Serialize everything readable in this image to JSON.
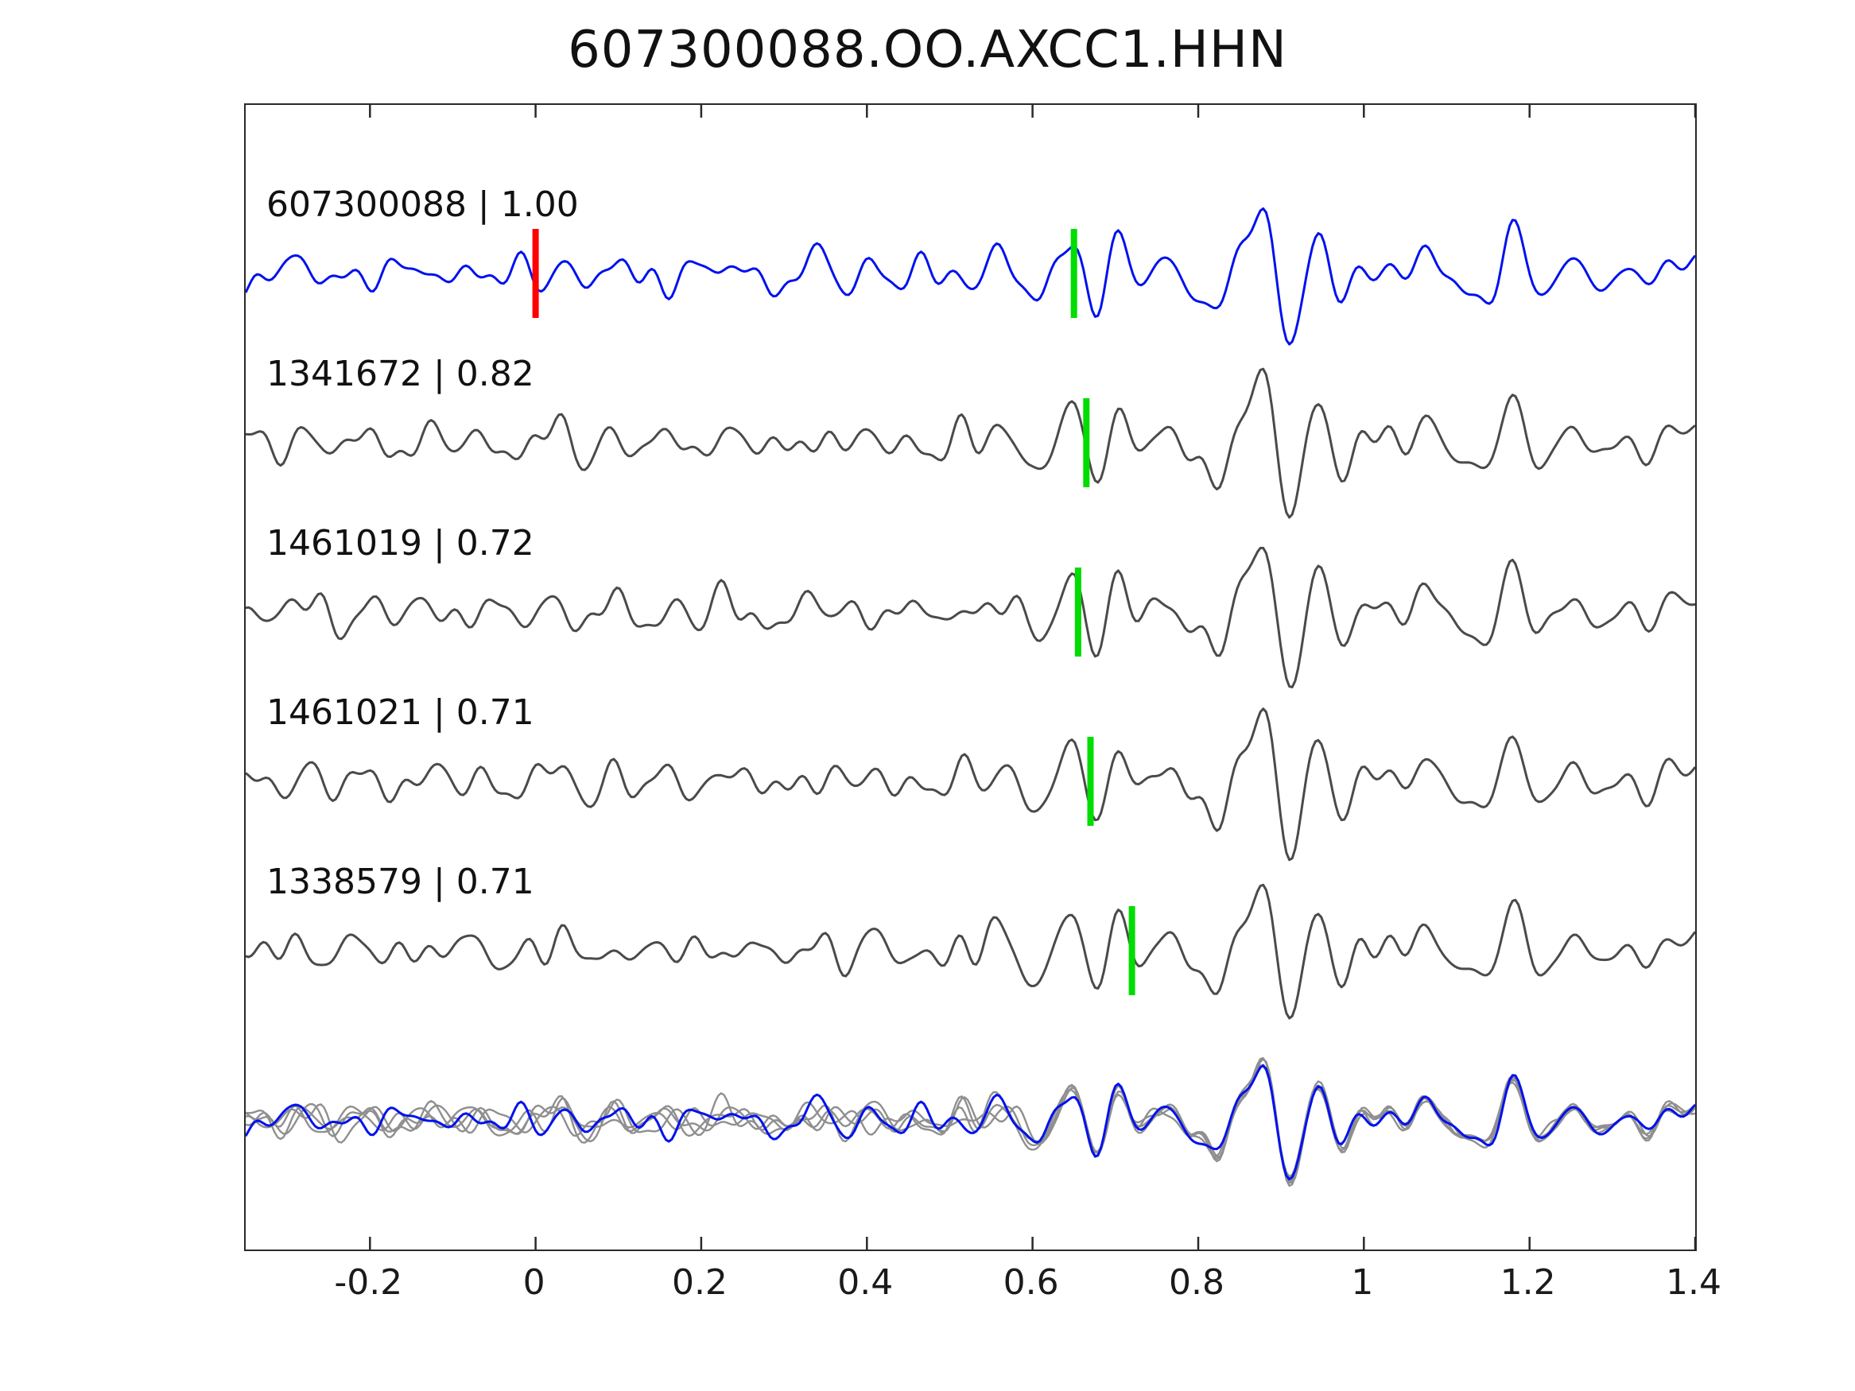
{
  "title": "607300088.OO.AXCC1.HHN",
  "chart_data": {
    "type": "line",
    "subtype": "seismogram-template-matching-comparison",
    "title": "607300088.OO.AXCC1.HHN",
    "xlabel": "",
    "ylabel": "",
    "xlim": [
      -0.35,
      1.4
    ],
    "x_ticks": [
      -0.2,
      0,
      0.2,
      0.4,
      0.6,
      0.8,
      1,
      1.2,
      1.4
    ],
    "x_tick_labels": [
      "-0.2",
      "0",
      "0.2",
      "0.4",
      "0.6",
      "0.8",
      "1",
      "1.2",
      "1.4"
    ],
    "grid": false,
    "legend_position": "none",
    "colors": {
      "template_trace": "#0011ee",
      "detection_trace": "#4a4a4a",
      "overlay_trace": "#8f8f8f",
      "pick_marker": "#00dd00",
      "template_marker": "#ff0000",
      "axis": "#2a2a2a",
      "text": "#111111"
    },
    "red_marker_x": 0,
    "traces": [
      {
        "id": "607300088",
        "cc": "1.00",
        "display": "607300088 | 1.00",
        "role": "template",
        "pick_x": 0.65,
        "seed": 11
      },
      {
        "id": "1341672",
        "cc": "0.82",
        "display": "1341672 | 0.82",
        "role": "detection",
        "pick_x": 0.665,
        "seed": 23
      },
      {
        "id": "1461019",
        "cc": "0.72",
        "display": "1461019 | 0.72",
        "role": "detection",
        "pick_x": 0.655,
        "seed": 37
      },
      {
        "id": "1461021",
        "cc": "0.71",
        "display": "1461021 | 0.71",
        "role": "detection",
        "pick_x": 0.67,
        "seed": 51
      },
      {
        "id": "1338579",
        "cc": "0.71",
        "display": "1338579 | 0.71",
        "role": "detection",
        "pick_x": 0.72,
        "seed": 67
      }
    ],
    "overlay_row": {
      "description": "bottom row: all detection waveforms overlaid in gray with the template waveform in blue",
      "has_template": true
    },
    "waveform_model": {
      "base_seed": 7,
      "base_freqs": [
        6,
        9.5,
        13,
        16.5,
        21,
        27
      ],
      "base_amps": [
        0.6,
        0.9,
        1.0,
        0.75,
        0.45,
        0.25
      ],
      "noise_freqs": [
        8,
        14,
        19,
        25,
        31
      ],
      "noise_amps": [
        0.5,
        0.7,
        0.6,
        0.4,
        0.3
      ],
      "envelope": [
        [
          -0.35,
          0.1
        ],
        [
          0,
          0.12
        ],
        [
          0.05,
          0.13
        ],
        [
          0.08,
          0.3
        ],
        [
          0.17,
          0.32
        ],
        [
          0.22,
          0.16
        ],
        [
          0.35,
          0.18
        ],
        [
          0.45,
          0.22
        ],
        [
          0.55,
          0.25
        ],
        [
          0.6,
          0.35
        ],
        [
          0.65,
          0.75
        ],
        [
          0.72,
          0.85
        ],
        [
          0.8,
          1.0
        ],
        [
          0.88,
          0.95
        ],
        [
          0.95,
          0.9
        ],
        [
          1.05,
          0.7
        ],
        [
          1.15,
          0.55
        ],
        [
          1.25,
          0.5
        ],
        [
          1.4,
          0.45
        ]
      ],
      "pre_noise_envelope": [
        [
          -0.35,
          1.0
        ],
        [
          0.55,
          1.0
        ],
        [
          0.65,
          0.3
        ],
        [
          1.4,
          0.15
        ]
      ]
    }
  }
}
